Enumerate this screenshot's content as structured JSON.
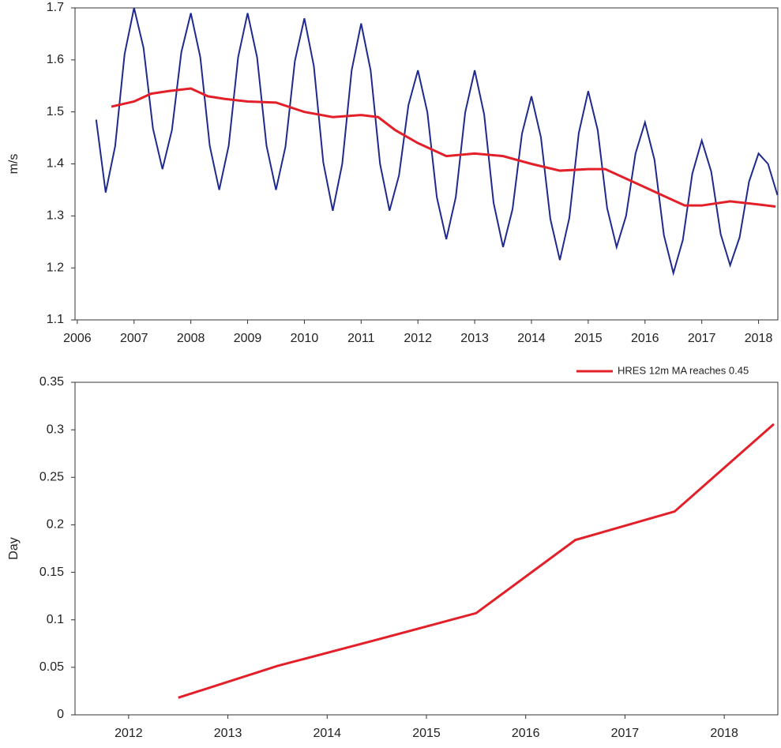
{
  "chart_data": [
    {
      "type": "line",
      "ylabel": "m/s",
      "xlim": [
        2005.96,
        2018.34
      ],
      "xticks": [
        2006,
        2007,
        2008,
        2009,
        2010,
        2011,
        2012,
        2013,
        2014,
        2015,
        2016,
        2017,
        2018
      ],
      "ylim": [
        1.1,
        1.7
      ],
      "yticks": [
        1.1,
        1.2,
        1.3,
        1.4,
        1.5,
        1.6,
        1.7
      ],
      "series": [
        {
          "color": "#1f2a8c",
          "x": [
            2006.333,
            2006.5,
            2006.667,
            2006.833,
            2007.0,
            2007.167,
            2007.333,
            2007.5,
            2007.667,
            2007.833,
            2008.0,
            2008.167,
            2008.333,
            2008.5,
            2008.667,
            2008.833,
            2009.0,
            2009.167,
            2009.333,
            2009.5,
            2009.667,
            2009.833,
            2010.0,
            2010.167,
            2010.333,
            2010.5,
            2010.667,
            2010.833,
            2011.0,
            2011.167,
            2011.333,
            2011.5,
            2011.667,
            2011.833,
            2012.0,
            2012.167,
            2012.333,
            2012.5,
            2012.667,
            2012.833,
            2013.0,
            2013.167,
            2013.333,
            2013.5,
            2013.667,
            2013.833,
            2014.0,
            2014.167,
            2014.333,
            2014.5,
            2014.667,
            2014.833,
            2015.0,
            2015.167,
            2015.333,
            2015.5,
            2015.667,
            2015.833,
            2016.0,
            2016.167,
            2016.333,
            2016.5,
            2016.667,
            2016.833,
            2017.0,
            2017.167,
            2017.333,
            2017.5,
            2017.667,
            2017.833,
            2018.0,
            2018.167,
            2018.333
          ],
          "values": [
            1.485,
            1.345,
            1.434,
            1.611,
            1.7,
            1.623,
            1.468,
            1.39,
            1.465,
            1.615,
            1.69,
            1.605,
            1.435,
            1.35,
            1.435,
            1.605,
            1.69,
            1.605,
            1.435,
            1.35,
            1.433,
            1.598,
            1.68,
            1.588,
            1.403,
            1.31,
            1.4,
            1.58,
            1.67,
            1.58,
            1.4,
            1.31,
            1.378,
            1.513,
            1.58,
            1.499,
            1.336,
            1.255,
            1.336,
            1.499,
            1.58,
            1.495,
            1.325,
            1.24,
            1.313,
            1.458,
            1.53,
            1.451,
            1.294,
            1.215,
            1.296,
            1.459,
            1.54,
            1.465,
            1.315,
            1.24,
            1.3,
            1.42,
            1.48,
            1.408,
            1.263,
            1.19,
            1.254,
            1.381,
            1.445,
            1.385,
            1.265,
            1.205,
            1.259,
            1.366,
            1.42,
            1.4,
            1.34
          ]
        },
        {
          "color": "#e3202a",
          "x": [
            2006.6,
            2007.0,
            2007.3,
            2007.6,
            2008.0,
            2008.3,
            2008.6,
            2009.0,
            2009.5,
            2010.0,
            2010.5,
            2011.0,
            2011.3,
            2011.6,
            2012.0,
            2012.5,
            2013.0,
            2013.5,
            2014.0,
            2014.5,
            2015.0,
            2015.3,
            2015.6,
            2016.0,
            2016.5,
            2016.7,
            2017.0,
            2017.5,
            2018.0,
            2018.3
          ],
          "values": [
            1.51,
            1.52,
            1.535,
            1.54,
            1.545,
            1.53,
            1.525,
            1.52,
            1.518,
            1.5,
            1.49,
            1.494,
            1.49,
            1.465,
            1.44,
            1.415,
            1.42,
            1.415,
            1.4,
            1.387,
            1.39,
            1.39,
            1.375,
            1.355,
            1.33,
            1.32,
            1.32,
            1.328,
            1.322,
            1.318
          ]
        }
      ]
    },
    {
      "type": "line",
      "ylabel": "Day",
      "xlim": [
        2011.46,
        2018.54
      ],
      "xticks": [
        2012,
        2013,
        2014,
        2015,
        2016,
        2017,
        2018
      ],
      "ylim": [
        0,
        0.35
      ],
      "yticks": [
        0,
        0.05,
        0.1,
        0.15,
        0.2,
        0.25,
        0.3,
        0.35
      ],
      "legend": "upper right",
      "series": [
        {
          "name": "HRES 12m MA reaches 0.45",
          "color": "#e3202a",
          "x": [
            2012.5,
            2013.5,
            2014.5,
            2015.5,
            2016.5,
            2017.5,
            2018.5
          ],
          "values": [
            0.018,
            0.0515,
            0.079,
            0.107,
            0.184,
            0.214,
            0.306
          ]
        }
      ]
    }
  ]
}
